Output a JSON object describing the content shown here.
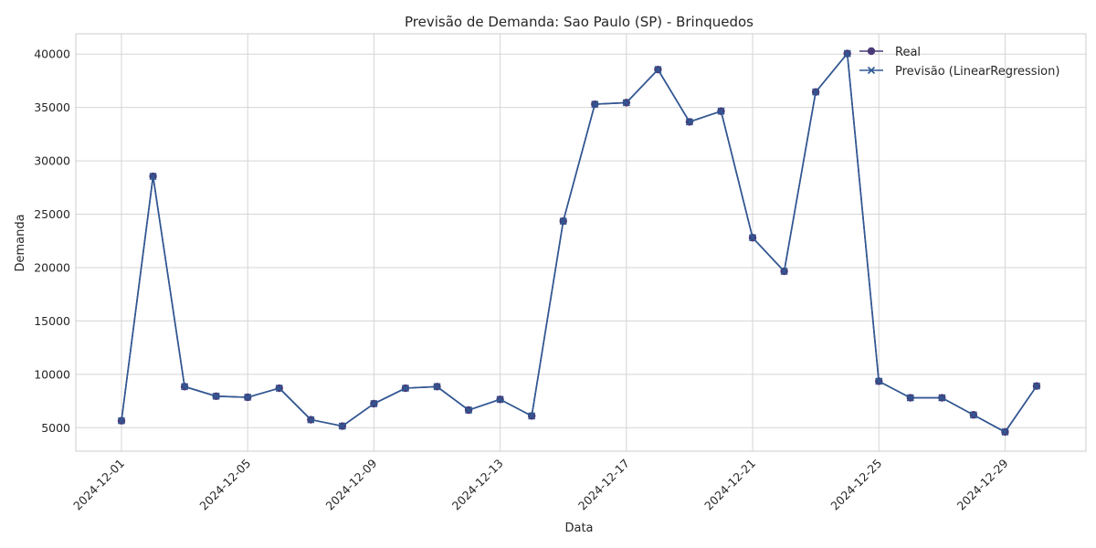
{
  "chart_data": {
    "type": "line",
    "title": "Previsão de Demanda: Sao Paulo (SP) - Brinquedos",
    "xlabel": "Data",
    "ylabel": "Demanda",
    "x": [
      "2024-12-01",
      "2024-12-02",
      "2024-12-03",
      "2024-12-04",
      "2024-12-05",
      "2024-12-06",
      "2024-12-07",
      "2024-12-08",
      "2024-12-09",
      "2024-12-10",
      "2024-12-11",
      "2024-12-12",
      "2024-12-13",
      "2024-12-14",
      "2024-12-15",
      "2024-12-16",
      "2024-12-17",
      "2024-12-18",
      "2024-12-19",
      "2024-12-20",
      "2024-12-21",
      "2024-12-22",
      "2024-12-23",
      "2024-12-24",
      "2024-12-25",
      "2024-12-26",
      "2024-12-27",
      "2024-12-28",
      "2024-12-29",
      "2024-12-30"
    ],
    "xticks": [
      "2024-12-01",
      "2024-12-05",
      "2024-12-09",
      "2024-12-13",
      "2024-12-17",
      "2024-12-21",
      "2024-12-25",
      "2024-12-29"
    ],
    "yticks": [
      5000,
      10000,
      15000,
      20000,
      25000,
      30000,
      35000,
      40000
    ],
    "ylim": [
      2800,
      41900
    ],
    "grid": true,
    "legend_position": "top-right",
    "series": [
      {
        "name": "Real",
        "marker": "circle",
        "color": "#4a3b78",
        "values": [
          5650,
          28550,
          8850,
          7950,
          7850,
          8700,
          5750,
          5150,
          7250,
          8700,
          8850,
          6650,
          7650,
          6100,
          24350,
          35300,
          35450,
          38550,
          33650,
          34650,
          22800,
          19650,
          36450,
          40050,
          9350,
          7800,
          7800,
          6200,
          4600,
          8900
        ]
      },
      {
        "name": "Previsão (LinearRegression)",
        "marker": "x",
        "color": "#2f5893",
        "values": [
          5650,
          28550,
          8850,
          7950,
          7850,
          8700,
          5750,
          5150,
          7250,
          8700,
          8850,
          6650,
          7650,
          6100,
          24350,
          35300,
          35450,
          38550,
          33650,
          34650,
          22800,
          19650,
          36450,
          40050,
          9350,
          7800,
          7800,
          6200,
          4600,
          8900
        ]
      }
    ]
  }
}
